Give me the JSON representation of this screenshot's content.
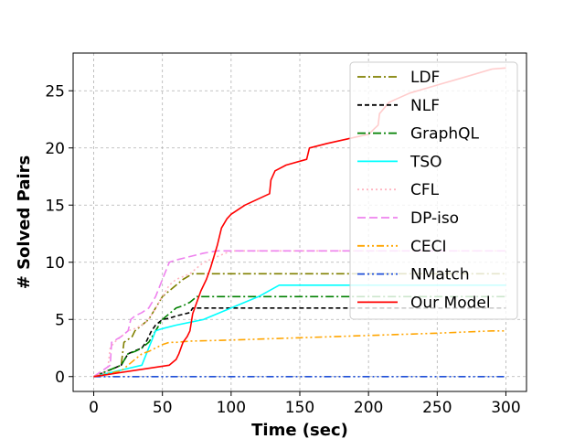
{
  "chart_data": {
    "type": "line",
    "title": "",
    "xlabel": "Time (sec)",
    "ylabel": "# Solved Pairs",
    "xlim": [
      -15,
      315
    ],
    "ylim": [
      -1.3,
      28.3
    ],
    "xticks": [
      0,
      50,
      100,
      150,
      200,
      250,
      300
    ],
    "yticks": [
      0,
      5,
      10,
      15,
      20,
      25
    ],
    "grid": true,
    "legend_position": "top-right",
    "series": [
      {
        "name": "LDF",
        "color": "#808000",
        "dash": "9,3,2,3",
        "x": [
          0,
          20,
          21,
          22,
          28,
          30,
          35,
          40,
          45,
          50,
          55,
          60,
          65,
          72,
          300
        ],
        "y": [
          0,
          1,
          2,
          3,
          3.5,
          4,
          4.5,
          5,
          6,
          7,
          7.5,
          8,
          8.5,
          9,
          9
        ]
      },
      {
        "name": "NLF",
        "color": "#000000",
        "dash": "5,3",
        "x": [
          0,
          20,
          25,
          35,
          38,
          42,
          45,
          50,
          55,
          60,
          70,
          72,
          90,
          300
        ],
        "y": [
          0,
          1,
          2,
          2.5,
          3,
          4,
          4.5,
          5,
          5.1,
          5.3,
          5.6,
          6,
          6,
          6
        ]
      },
      {
        "name": "GraphQL",
        "color": "#008000",
        "dash": "9,3,2,3",
        "x": [
          0,
          20,
          25,
          30,
          35,
          40,
          45,
          50,
          55,
          60,
          65,
          70,
          75,
          300
        ],
        "y": [
          0,
          1,
          2,
          2.2,
          2.5,
          3,
          4,
          5,
          5.5,
          6,
          6.2,
          6.5,
          7,
          7
        ]
      },
      {
        "name": "TSO",
        "color": "#00FFFF",
        "dash": "",
        "x": [
          0,
          35,
          40,
          45,
          50,
          60,
          80,
          100,
          120,
          135,
          300
        ],
        "y": [
          0,
          1,
          2.5,
          4,
          4.2,
          4.5,
          5,
          6,
          7,
          8,
          8
        ]
      },
      {
        "name": "CFL",
        "color": "#FFB6C1",
        "dash": "2,3",
        "x": [
          0,
          10,
          12,
          15,
          20,
          25,
          30,
          35,
          40,
          45,
          50,
          55,
          60,
          70,
          80,
          100,
          150,
          200,
          250,
          300
        ],
        "y": [
          0,
          0.5,
          2.5,
          3,
          3.5,
          4,
          4.2,
          4.5,
          5,
          6,
          7,
          8,
          8.5,
          9,
          10,
          11,
          11,
          11,
          11,
          11
        ]
      },
      {
        "name": "DP-iso",
        "color": "#EE82EE",
        "dash": "9,4",
        "x": [
          0,
          12,
          13,
          20,
          25,
          27,
          30,
          35,
          40,
          45,
          50,
          55,
          60,
          70,
          80,
          90,
          100,
          300
        ],
        "y": [
          0,
          1,
          3,
          3.5,
          4,
          5,
          5.3,
          5.6,
          6,
          7,
          8.5,
          10,
          10.2,
          10.5,
          10.8,
          11,
          11,
          11
        ]
      },
      {
        "name": "CECI",
        "color": "#FFA500",
        "dash": "8,3,2,3,2,3",
        "x": [
          0,
          20,
          25,
          30,
          35,
          40,
          45,
          50,
          55,
          60,
          70,
          100,
          150,
          200,
          250,
          290,
          300
        ],
        "y": [
          0,
          0.5,
          1,
          1.5,
          2,
          2.2,
          2.5,
          2.8,
          3,
          3,
          3.1,
          3.2,
          3.4,
          3.6,
          3.8,
          4,
          4
        ]
      },
      {
        "name": "NMatch",
        "color": "#1f4fd8",
        "dash": "8,3,2,3,2,3",
        "x": [
          0,
          300
        ],
        "y": [
          0,
          0
        ]
      },
      {
        "name": "Our Model",
        "color": "#FF0000",
        "dash": "",
        "x": [
          0,
          55,
          60,
          62,
          65,
          68,
          70,
          72,
          75,
          78,
          82,
          85,
          90,
          93,
          97,
          100,
          110,
          128,
          129,
          132,
          140,
          155,
          157,
          170,
          185,
          200,
          207,
          208,
          215,
          230,
          250,
          270,
          290,
          300
        ],
        "y": [
          0,
          1,
          1.5,
          2,
          3,
          3.5,
          4,
          5.5,
          6.5,
          7.5,
          8.5,
          9.5,
          11.5,
          13,
          13.8,
          14.2,
          15,
          16,
          17.2,
          18,
          18.5,
          19,
          20,
          20.4,
          20.8,
          21.2,
          22,
          23,
          24,
          24.8,
          25.5,
          26.2,
          26.9,
          27
        ]
      }
    ]
  }
}
